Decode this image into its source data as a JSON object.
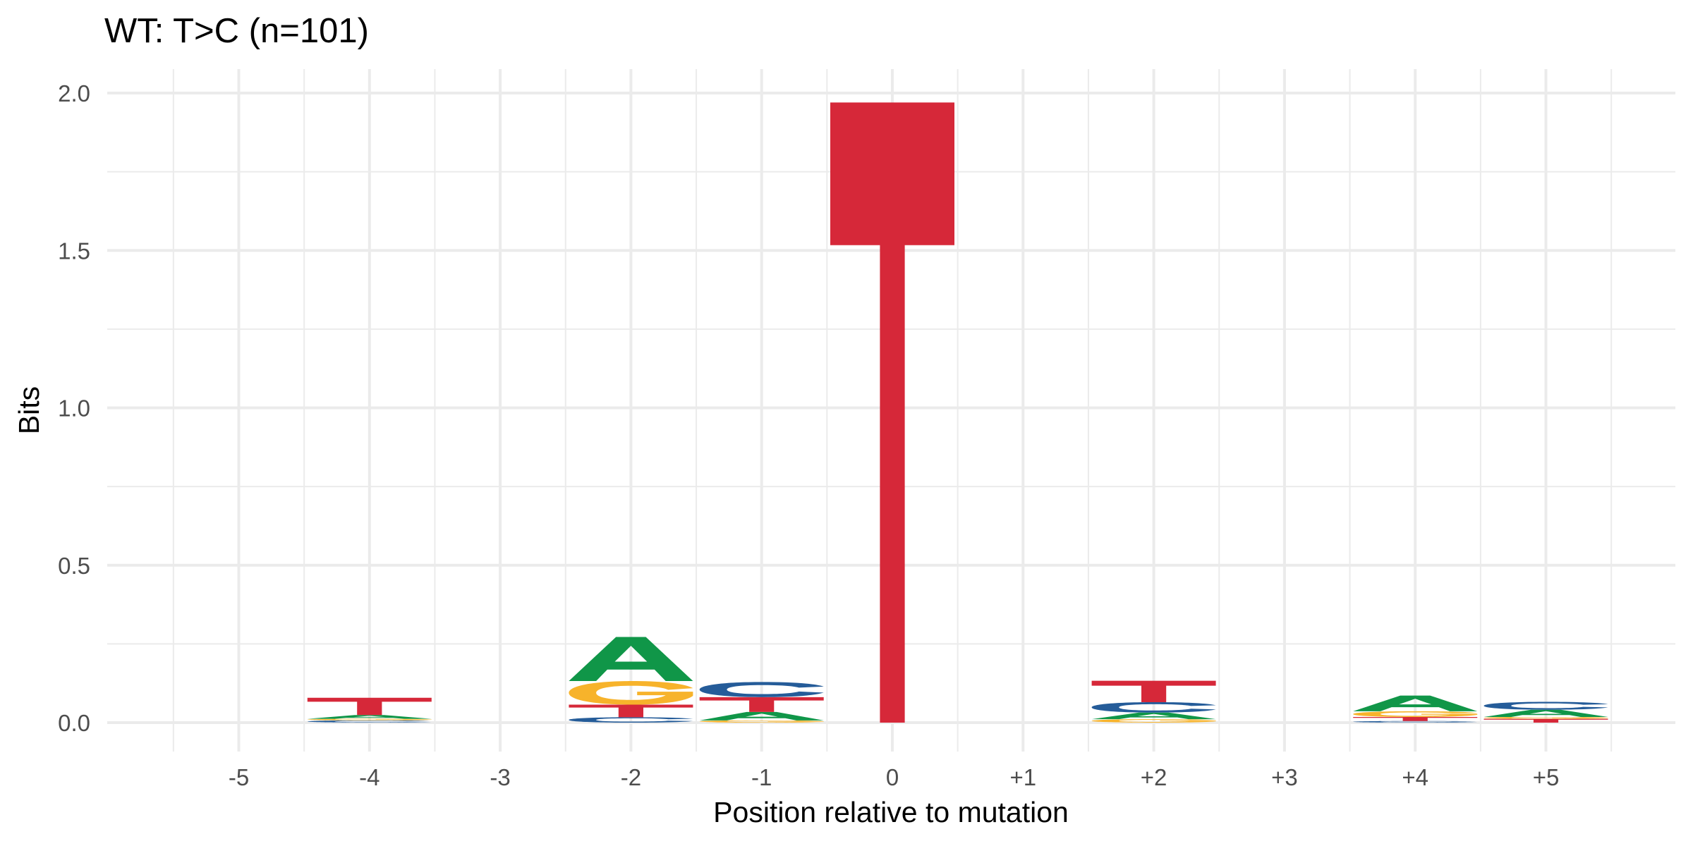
{
  "chart_data": {
    "type": "sequence-logo",
    "title": "WT: T>C (n=101)",
    "xlabel": "Position relative to mutation",
    "ylabel": "Bits",
    "ylim": [
      0,
      2.0
    ],
    "y_ticks": [
      "0.0",
      "0.5",
      "1.0",
      "1.5",
      "2.0"
    ],
    "grid": true,
    "positions": [
      "-5",
      "-4",
      "-3",
      "-2",
      "-1",
      "0",
      "+1",
      "+2",
      "+3",
      "+4",
      "+5"
    ],
    "letter_colors": {
      "A": "#109648",
      "C": "#255C99",
      "G": "#F7B32B",
      "T": "#D62839"
    },
    "stacks": [
      {
        "position": "-5",
        "letters": []
      },
      {
        "position": "-4",
        "letters": [
          {
            "letter": "C",
            "bits": 0.007
          },
          {
            "letter": "G",
            "bits": 0.005
          },
          {
            "letter": "A",
            "bits": 0.012
          },
          {
            "letter": "T",
            "bits": 0.055
          }
        ]
      },
      {
        "position": "-3",
        "letters": []
      },
      {
        "position": "-2",
        "letters": [
          {
            "letter": "C",
            "bits": 0.017
          },
          {
            "letter": "T",
            "bits": 0.04
          },
          {
            "letter": "G",
            "bits": 0.075
          },
          {
            "letter": "A",
            "bits": 0.14
          }
        ]
      },
      {
        "position": "-1",
        "letters": [
          {
            "letter": "G",
            "bits": 0.007
          },
          {
            "letter": "A",
            "bits": 0.027
          },
          {
            "letter": "T",
            "bits": 0.047
          },
          {
            "letter": "C",
            "bits": 0.048
          }
        ]
      },
      {
        "position": "0",
        "letters": [
          {
            "letter": "T",
            "bits": 1.97
          }
        ]
      },
      {
        "position": "+1",
        "letters": []
      },
      {
        "position": "+2",
        "letters": [
          {
            "letter": "G",
            "bits": 0.011
          },
          {
            "letter": "A",
            "bits": 0.021
          },
          {
            "letter": "C",
            "bits": 0.033
          },
          {
            "letter": "T",
            "bits": 0.068
          }
        ]
      },
      {
        "position": "+3",
        "letters": []
      },
      {
        "position": "+4",
        "letters": [
          {
            "letter": "C",
            "bits": 0.005
          },
          {
            "letter": "T",
            "bits": 0.013
          },
          {
            "letter": "G",
            "bits": 0.018
          },
          {
            "letter": "A",
            "bits": 0.05
          }
        ]
      },
      {
        "position": "+5",
        "letters": [
          {
            "letter": "T",
            "bits": 0.012
          },
          {
            "letter": "G",
            "bits": 0.006
          },
          {
            "letter": "A",
            "bits": 0.023
          },
          {
            "letter": "C",
            "bits": 0.025
          }
        ]
      }
    ]
  }
}
